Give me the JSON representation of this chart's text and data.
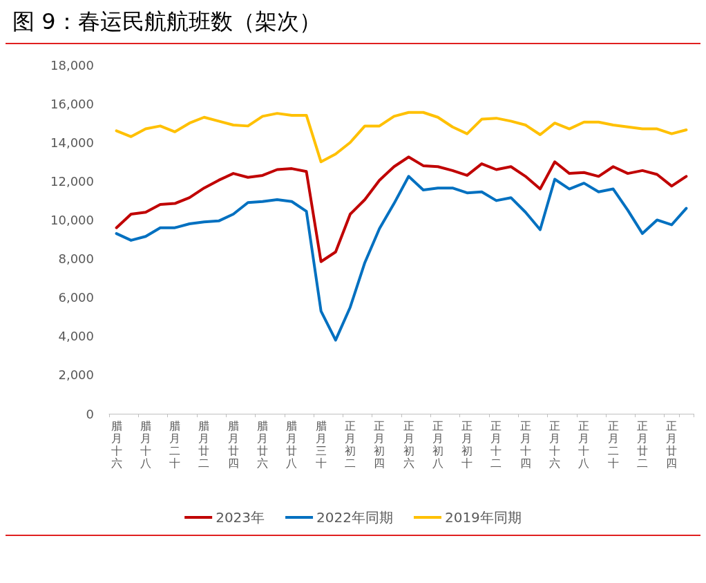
{
  "chart_data": {
    "type": "line",
    "title": "图 9：春运民航航班数（架次）",
    "categories": [
      "腊月十六",
      null,
      "腊月十八",
      null,
      "腊月二十",
      null,
      "腊月廿二",
      null,
      "腊月廿四",
      null,
      "腊月廿六",
      null,
      "腊月廿八",
      null,
      "腊月三十",
      null,
      "正月初二",
      null,
      "正月初四",
      null,
      "正月初六",
      null,
      "正月初八",
      null,
      "正月初十",
      null,
      "正月十二",
      null,
      "正月十四",
      null,
      "正月十六",
      null,
      "正月十八",
      null,
      "正月二十",
      null,
      "正月廿二",
      null,
      "正月廿四",
      null
    ],
    "series": [
      {
        "name": "2023年",
        "color": "#c00000",
        "values": [
          9600,
          10300,
          10400,
          10800,
          10850,
          11150,
          11650,
          12050,
          12400,
          12200,
          12300,
          12600,
          12650,
          12500,
          7850,
          8350,
          10300,
          11050,
          12050,
          12750,
          13250,
          12800,
          12750,
          12550,
          12300,
          12900,
          12600,
          12750,
          12250,
          11600,
          13000,
          12400,
          12450,
          12250,
          12750,
          12400,
          12550,
          12350,
          11750,
          12250
        ]
      },
      {
        "name": "2022年同期",
        "color": "#0070c0",
        "values": [
          9300,
          8950,
          9150,
          9600,
          9600,
          9800,
          9900,
          9950,
          10300,
          10900,
          10950,
          11050,
          10950,
          10450,
          5300,
          3800,
          5500,
          7800,
          9550,
          10850,
          12250,
          11550,
          11650,
          11650,
          11400,
          11450,
          11000,
          11150,
          10400,
          9500,
          12100,
          11600,
          11900,
          11450,
          11600,
          10500,
          9300,
          10000,
          9750,
          10600
        ]
      },
      {
        "name": "2019年同期",
        "color": "#ffc000",
        "values": [
          14600,
          14300,
          14700,
          14850,
          14550,
          15000,
          15300,
          15100,
          14900,
          14850,
          15350,
          15500,
          15400,
          15400,
          13000,
          13400,
          14000,
          14850,
          14850,
          15350,
          15550,
          15550,
          15300,
          14800,
          14450,
          15200,
          15250,
          15100,
          14900,
          14400,
          15000,
          14700,
          15050,
          15050,
          14900,
          14800,
          14700,
          14700,
          14450,
          14650
        ]
      }
    ],
    "ylim": [
      0,
      18000
    ],
    "yticks": [
      0,
      {
        "value": 2000,
        "label": "2,000"
      },
      {
        "value": 4000,
        "label": "4,000"
      },
      {
        "value": 6000,
        "label": "6,000"
      },
      {
        "value": 8000,
        "label": "8,000"
      },
      {
        "value": 10000,
        "label": "10,000"
      },
      {
        "value": 12000,
        "label": "12,000"
      },
      {
        "value": 14000,
        "label": "14,000"
      },
      {
        "value": 16000,
        "label": "16,000"
      },
      {
        "value": 18000,
        "label": "18,000"
      }
    ],
    "grid": false,
    "legend": "bottom",
    "marker": "none",
    "line_style": "solid"
  }
}
